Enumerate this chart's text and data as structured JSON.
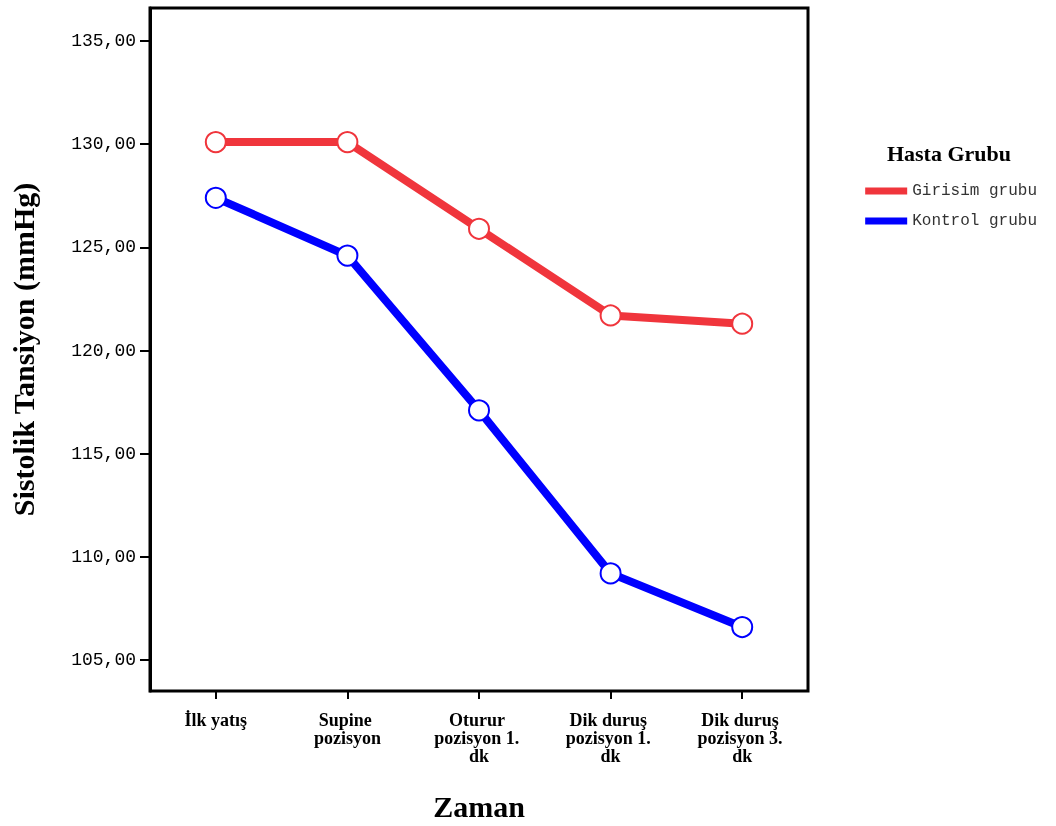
{
  "chart_data": {
    "type": "line",
    "xlabel": "Zaman",
    "ylabel": "Sistolik Tansiyon (mmHg)",
    "legend_title": "Hasta Grubu",
    "categories": [
      "İlk yatış",
      "Supine pozisyon",
      "Oturur pozisyon 1. dk",
      "Dik duruş pozisyon 1. dk",
      "Dik duruş pozisyon 3. dk"
    ],
    "series": [
      {
        "name": "Girisim grubu",
        "color": "#f0353c",
        "values": [
          130.1,
          130.1,
          125.9,
          121.7,
          121.3
        ]
      },
      {
        "name": "Kontrol grubu",
        "color": "#0000ff",
        "values": [
          127.4,
          124.6,
          117.1,
          109.2,
          106.6
        ]
      }
    ],
    "ylim": [
      103.5,
      136.6
    ],
    "yticks": [
      {
        "value": 105,
        "label": "105,00"
      },
      {
        "value": 110,
        "label": "110,00"
      },
      {
        "value": 115,
        "label": "115,00"
      },
      {
        "value": 120,
        "label": "120,00"
      },
      {
        "value": 125,
        "label": "125,00"
      },
      {
        "value": 130,
        "label": "130,00"
      },
      {
        "value": 135,
        "label": "135,00"
      }
    ],
    "marker": "circle",
    "line_style": "solid",
    "legend": "right",
    "grid": false
  }
}
